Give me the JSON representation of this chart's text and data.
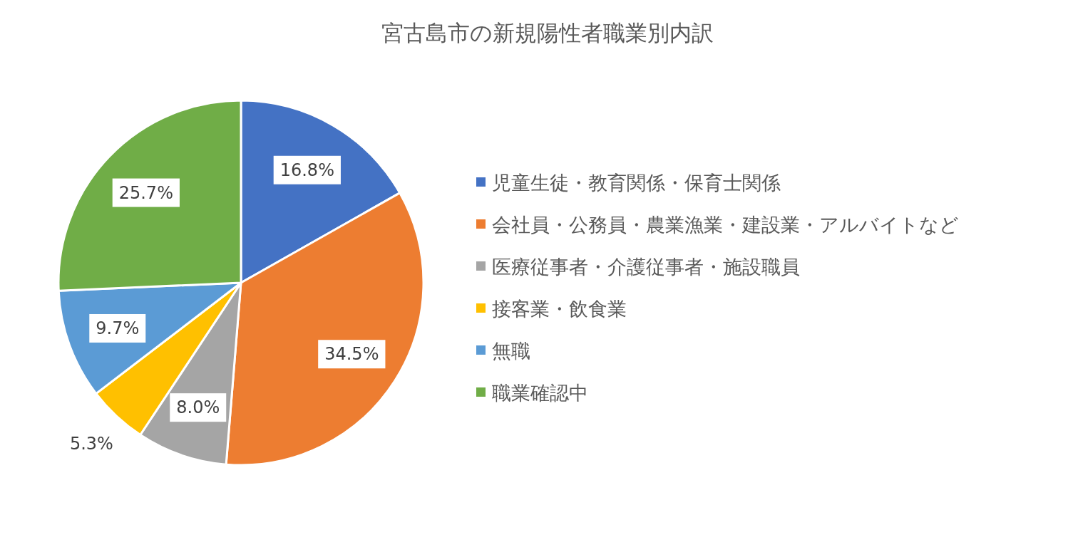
{
  "chart_data": {
    "type": "pie",
    "title": "宮古島市の新規陽性者職業別内訳",
    "categories": [
      "児童生徒・教育関係・保育士関係",
      "会社員・公務員・農業漁業・建設業・アルバイトなど",
      "医療従事者・介護従事者・施設職員",
      "接客業・飲食業",
      "無職",
      "職業確認中"
    ],
    "values": [
      16.8,
      34.5,
      8.0,
      5.3,
      9.7,
      25.7
    ],
    "value_labels": [
      "16.8%",
      "34.5%",
      "8.0%",
      "5.3%",
      "9.7%",
      "25.7%"
    ],
    "colors": [
      "#4472c4",
      "#ed7d31",
      "#a5a5a5",
      "#ffc000",
      "#5b9bd5",
      "#70ad47"
    ],
    "legend": "right"
  }
}
